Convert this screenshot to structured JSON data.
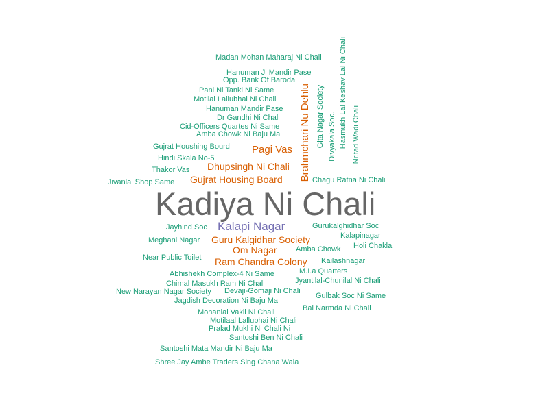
{
  "colors": {
    "teal": "#1b9e77",
    "orange": "#d95f02",
    "purple": "#7570b3",
    "gray": "#666666"
  },
  "words": [
    {
      "text": "Kadiya Ni Chali",
      "color": "gray"
    },
    {
      "text": "Kalapi Nagar",
      "color": "purple"
    },
    {
      "text": "Brahmchari Nu Dehlu",
      "color": "orange"
    },
    {
      "text": "Pagi Vas",
      "color": "orange"
    },
    {
      "text": "Dhupsingh Ni Chali",
      "color": "orange"
    },
    {
      "text": "Gujrat Housing Board",
      "color": "orange"
    },
    {
      "text": "Guru Kalgidhar Society",
      "color": "orange"
    },
    {
      "text": "Om Nagar",
      "color": "orange"
    },
    {
      "text": "Ram Chandra Colony",
      "color": "orange"
    },
    {
      "text": "Madan Mohan Maharaj Ni Chali",
      "color": "teal"
    },
    {
      "text": "Hanuman Ji Mandir Pase",
      "color": "teal"
    },
    {
      "text": "Opp. Bank Of Baroda",
      "color": "teal"
    },
    {
      "text": "Pani Ni Tanki Ni Same",
      "color": "teal"
    },
    {
      "text": "Motilal Lallubhai Ni Chali",
      "color": "teal"
    },
    {
      "text": "Hanuman Mandir Pase",
      "color": "teal"
    },
    {
      "text": "Dr Gandhi Ni Chali",
      "color": "teal"
    },
    {
      "text": "Cid-Officers Quartes Ni Same",
      "color": "teal"
    },
    {
      "text": "Amba Chowk Ni Baju Ma",
      "color": "teal"
    },
    {
      "text": "Gujrat Houshing Bourd",
      "color": "teal"
    },
    {
      "text": "Hindi Skala No-5",
      "color": "teal"
    },
    {
      "text": "Thakor Vas",
      "color": "teal"
    },
    {
      "text": "Jivanlal Shop Same",
      "color": "teal"
    },
    {
      "text": "Chagu Ratna Ni Chali",
      "color": "teal"
    },
    {
      "text": "Gita Nagar Society",
      "color": "teal"
    },
    {
      "text": "Divyakala Soc.",
      "color": "teal"
    },
    {
      "text": "Hasmukh Lal Keshav Lal Ni Chali",
      "color": "teal"
    },
    {
      "text": "Nr.tad Wadi Chali",
      "color": "teal"
    },
    {
      "text": "Jayhind Soc",
      "color": "teal"
    },
    {
      "text": "Gurukalghidhar Soc",
      "color": "teal"
    },
    {
      "text": "Meghani Nagar",
      "color": "teal"
    },
    {
      "text": "Kalapinagar",
      "color": "teal"
    },
    {
      "text": "Holi Chakla",
      "color": "teal"
    },
    {
      "text": "Amba Chowk",
      "color": "teal"
    },
    {
      "text": "Near Public Toilet",
      "color": "teal"
    },
    {
      "text": "Kailashnagar",
      "color": "teal"
    },
    {
      "text": "M.I.a Quarters",
      "color": "teal"
    },
    {
      "text": "Abhishekh Complex-4 Ni Same",
      "color": "teal"
    },
    {
      "text": "Chimal Masukh Ram Ni Chali",
      "color": "teal"
    },
    {
      "text": "Jyantilal-Chunilal Ni Chali",
      "color": "teal"
    },
    {
      "text": "New Narayan Nagar Society",
      "color": "teal"
    },
    {
      "text": "Devaji-Gomaji Ni Chali",
      "color": "teal"
    },
    {
      "text": "Gulbak Soc Ni Same",
      "color": "teal"
    },
    {
      "text": "Jagdish Decoration Ni Baju Ma",
      "color": "teal"
    },
    {
      "text": "Bai Narmda Ni Chali",
      "color": "teal"
    },
    {
      "text": "Mohanlal Vakil Ni Chali",
      "color": "teal"
    },
    {
      "text": "Motilaal Lallubhai Ni Chali",
      "color": "teal"
    },
    {
      "text": "Pralad Mukhi Ni Chali Ni",
      "color": "teal"
    },
    {
      "text": "Santoshi Ben Ni Chali",
      "color": "teal"
    },
    {
      "text": "Santoshi Mata Mandir Ni Baju Ma",
      "color": "teal"
    },
    {
      "text": "Shree Jay Ambe Traders Sing Chana Wala",
      "color": "teal"
    }
  ]
}
